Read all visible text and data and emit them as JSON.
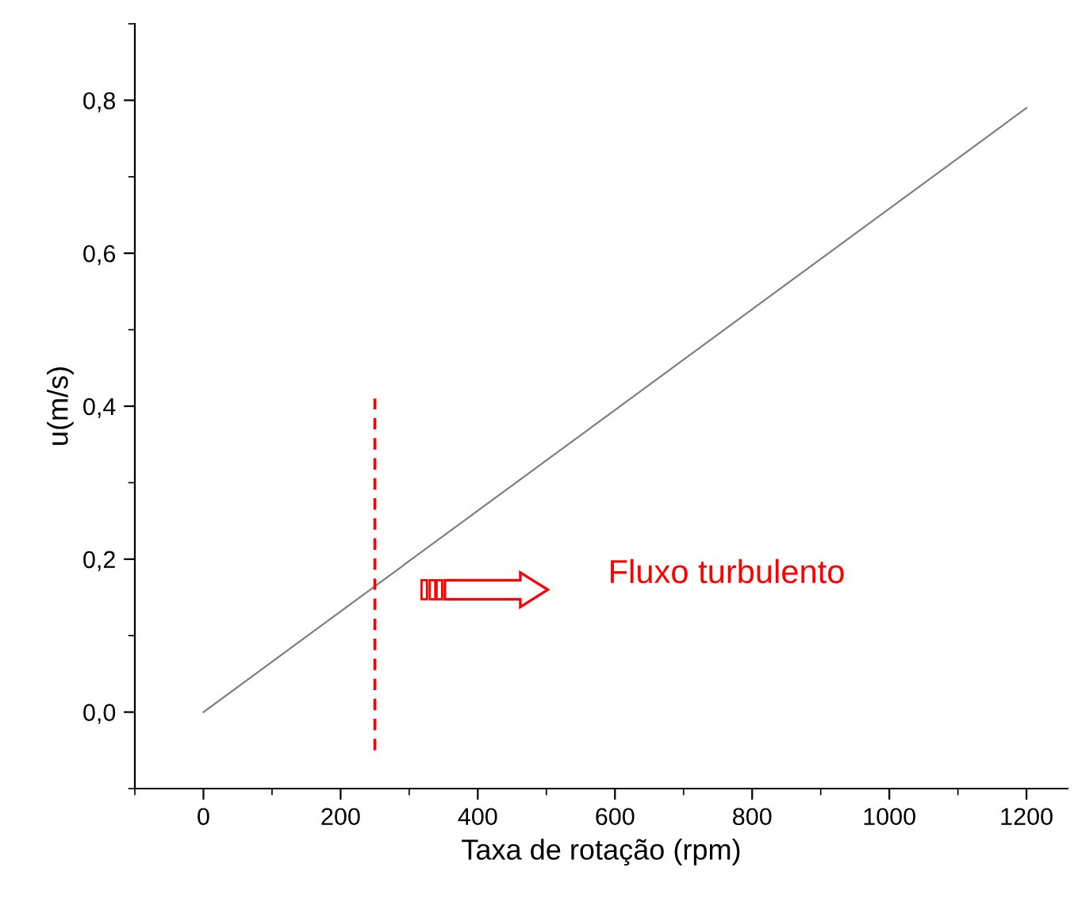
{
  "chart_data": {
    "type": "line",
    "xlabel": "Taxa de rotação (rpm)",
    "ylabel": "u(m/s)",
    "xlim": [
      -100,
      1260
    ],
    "ylim": [
      -0.1,
      0.9
    ],
    "xticks": [
      0,
      200,
      400,
      600,
      800,
      1000,
      1200
    ],
    "yticks": [
      {
        "value": 0,
        "label": "0,0"
      },
      {
        "value": 0.2,
        "label": "0,2"
      },
      {
        "value": 0.4,
        "label": "0,4"
      },
      {
        "value": 0.6,
        "label": "0,6"
      },
      {
        "value": 0.8,
        "label": "0,8"
      }
    ],
    "series": [
      {
        "x": [
          0,
          1200
        ],
        "values": [
          0,
          0.79
        ],
        "color": "#808080"
      },
      {
        "x": [
          250,
          250
        ],
        "values": [
          -0.05,
          0.41
        ],
        "color": "#ff0000",
        "line_style": "dashed"
      }
    ],
    "annotations": [
      "Fluxo turbulento"
    ],
    "grid": false,
    "legend": false,
    "marker": "none"
  }
}
